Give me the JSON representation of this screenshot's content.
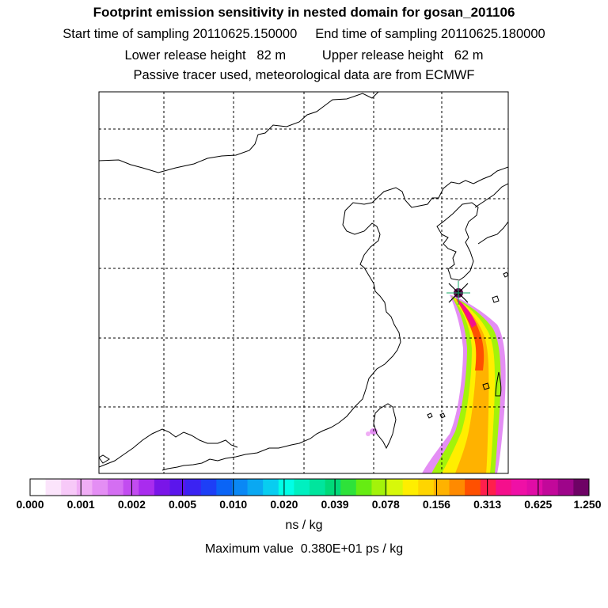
{
  "header": {
    "title": "Footprint emission sensitivity in nested domain for gosan_201106",
    "line1": "Start time of sampling 20110625.150000     End time of sampling 20110625.180000",
    "line2": "Lower release height   82 m          Upper release height   62 m",
    "line3": "Passive tracer used, meteorological data are from ECMWF"
  },
  "colorbar": {
    "colors": [
      "#ffffff",
      "#fbe4fb",
      "#f7c9f8",
      "#f0adf5",
      "#e48ef4",
      "#d46ef2",
      "#c24cf0",
      "#a92cee",
      "#7a15e8",
      "#5b16ec",
      "#3b23f2",
      "#1d3ff6",
      "#0a64f6",
      "#0a88f5",
      "#0aa8f2",
      "#08cdf0",
      "#00ffe6",
      "#00f0c0",
      "#00e59d",
      "#00da79",
      "#2ee23a",
      "#66ec12",
      "#a3f30a",
      "#d7f80a",
      "#ffee00",
      "#ffd500",
      "#ffb200",
      "#ff8a00",
      "#ff5000",
      "#ff1f4c",
      "#f50f8c",
      "#ef10a6",
      "#e00ca6",
      "#c2089a",
      "#9e058a",
      "#6e0265"
    ],
    "tick_labels": [
      "0.000",
      "0.001",
      "0.002",
      "0.005",
      "0.010",
      "0.020",
      "0.039",
      "0.078",
      "0.156",
      "0.313",
      "0.625",
      "1.250"
    ],
    "unit": "ns / kg"
  },
  "footer": {
    "max_value": "Maximum value  0.380E+01 ps / kg"
  },
  "map": {
    "receptor": "gosan",
    "frame_color": "#000000",
    "grid_color": "#000000"
  }
}
